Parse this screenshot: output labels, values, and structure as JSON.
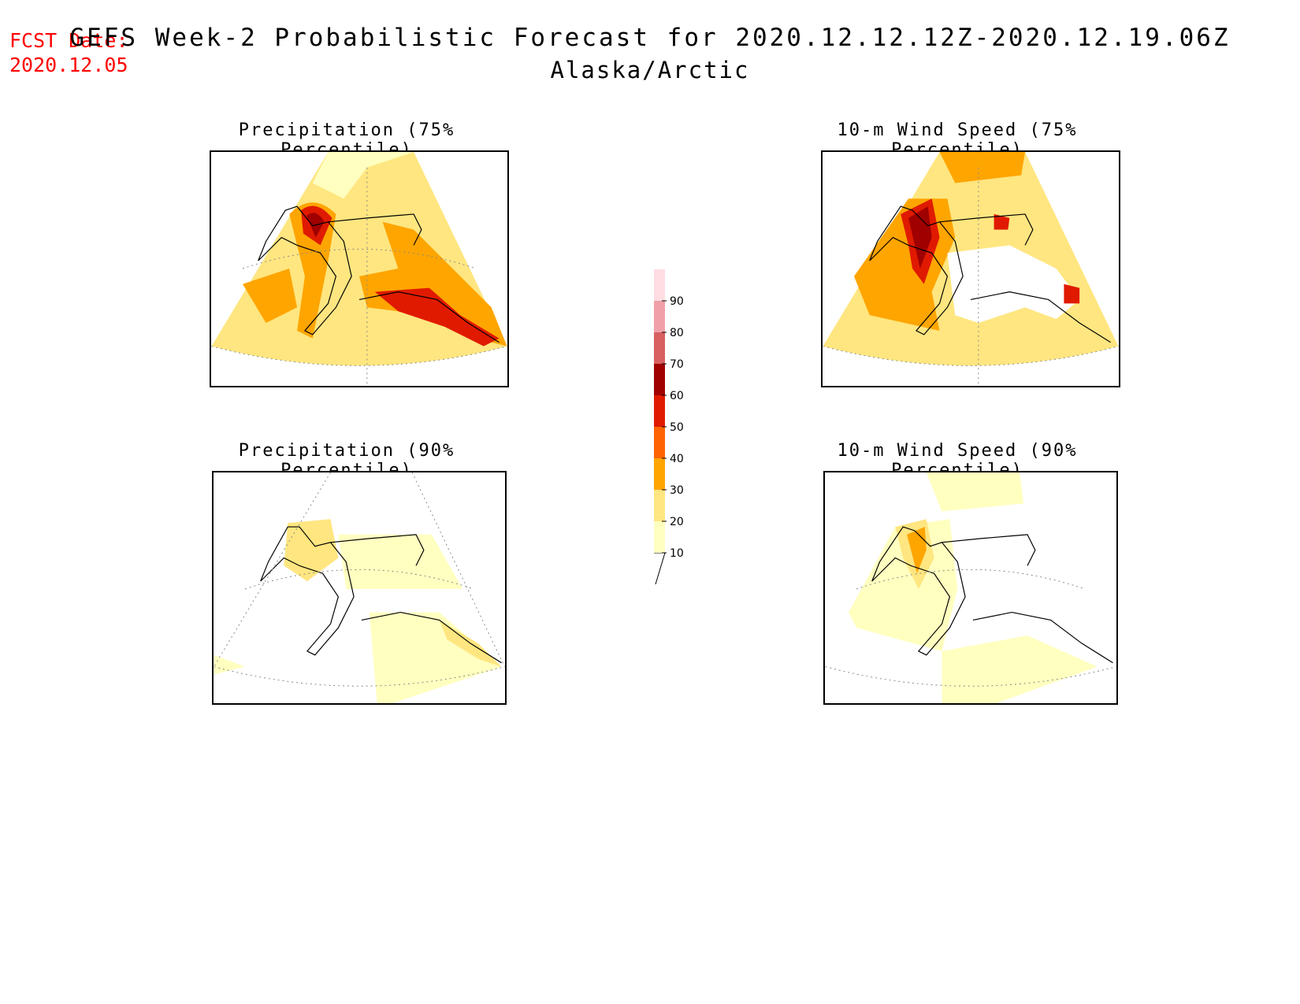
{
  "forecast_date": {
    "label": "FCST Date:",
    "value": "2020.12.05"
  },
  "title": {
    "line1": "GEFS Week-2 Probabilistic Forecast for 2020.12.12.12Z-2020.12.19.06Z",
    "line2": "Alaska/Arctic"
  },
  "panels": [
    {
      "id": "precip75",
      "title": "Precipitation (75% Percentile)"
    },
    {
      "id": "wind75",
      "title": "10-m Wind Speed (75% Percentile)"
    },
    {
      "id": "precip90",
      "title": "Precipitation (90% Percentile)"
    },
    {
      "id": "wind90",
      "title": "10-m Wind Speed (90% Percentile)"
    }
  ],
  "colorbar": {
    "levels": [
      "10",
      "20",
      "30",
      "40",
      "50",
      "60",
      "70",
      "80",
      "90"
    ],
    "colors": [
      "#ffffc0",
      "#ffe680",
      "#ffa500",
      "#ff6400",
      "#e01a00",
      "#a00000",
      "#d86060",
      "#f0a0a8",
      "#ffdde3"
    ]
  }
}
